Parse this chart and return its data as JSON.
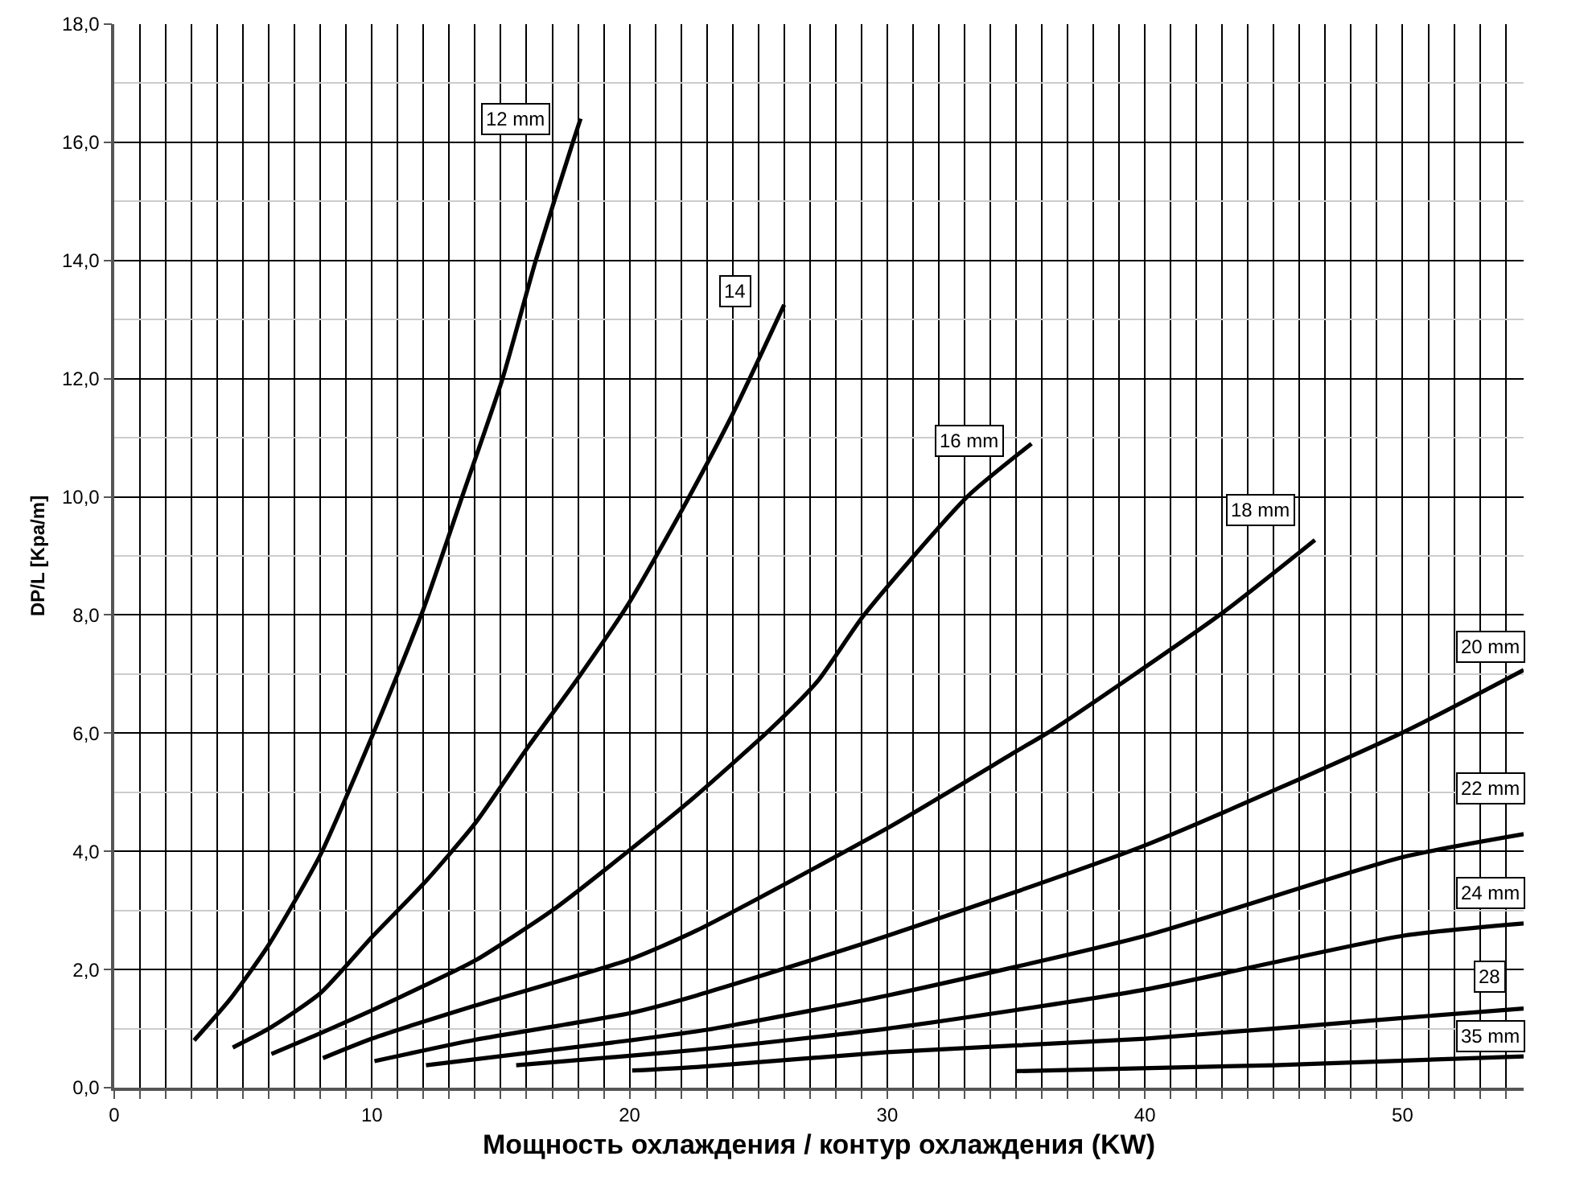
{
  "chart_data": {
    "type": "line",
    "xlabel": "Мощность охлаждения / контур охлаждения (KW)",
    "ylabel": "DP/L [Kpa/m]",
    "xlim": [
      0,
      54.7
    ],
    "ylim": [
      0,
      18
    ],
    "xticks": [
      0,
      {
        "value": 1,
        "label": null
      },
      {
        "value": 2,
        "label": null
      },
      {
        "value": 3,
        "label": null
      },
      {
        "value": 4,
        "label": null
      },
      {
        "value": 5,
        "label": null
      },
      {
        "value": 6,
        "label": null
      },
      {
        "value": 7,
        "label": null
      },
      {
        "value": 8,
        "label": null
      },
      {
        "value": 9,
        "label": null
      },
      10,
      {
        "value": 11,
        "label": null
      },
      {
        "value": 12,
        "label": null
      },
      {
        "value": 13,
        "label": null
      },
      {
        "value": 14,
        "label": null
      },
      {
        "value": 15,
        "label": null
      },
      {
        "value": 16,
        "label": null
      },
      {
        "value": 17,
        "label": null
      },
      {
        "value": 18,
        "label": null
      },
      {
        "value": 19,
        "label": null
      },
      20,
      {
        "value": 21,
        "label": null
      },
      {
        "value": 22,
        "label": null
      },
      {
        "value": 23,
        "label": null
      },
      {
        "value": 24,
        "label": null
      },
      {
        "value": 25,
        "label": null
      },
      {
        "value": 26,
        "label": null
      },
      {
        "value": 27,
        "label": null
      },
      {
        "value": 28,
        "label": null
      },
      {
        "value": 29,
        "label": null
      },
      30,
      {
        "value": 31,
        "label": null
      },
      {
        "value": 32,
        "label": null
      },
      {
        "value": 33,
        "label": null
      },
      {
        "value": 34,
        "label": null
      },
      {
        "value": 35,
        "label": null
      },
      {
        "value": 36,
        "label": null
      },
      {
        "value": 37,
        "label": null
      },
      {
        "value": 38,
        "label": null
      },
      {
        "value": 39,
        "label": null
      },
      40,
      {
        "value": 41,
        "label": null
      },
      {
        "value": 42,
        "label": null
      },
      {
        "value": 43,
        "label": null
      },
      {
        "value": 44,
        "label": null
      },
      {
        "value": 45,
        "label": null
      },
      {
        "value": 46,
        "label": null
      },
      {
        "value": 47,
        "label": null
      },
      {
        "value": 48,
        "label": null
      },
      {
        "value": 49,
        "label": null
      },
      50,
      {
        "value": 51,
        "label": null
      },
      {
        "value": 52,
        "label": null
      },
      {
        "value": 53,
        "label": null
      },
      {
        "value": 54,
        "label": null
      }
    ],
    "yticks": [
      {
        "value": 0,
        "label": "0,0"
      },
      {
        "value": 1,
        "label": null
      },
      {
        "value": 2,
        "label": "2,0"
      },
      {
        "value": 3,
        "label": null
      },
      {
        "value": 4,
        "label": "4,0"
      },
      {
        "value": 5,
        "label": null
      },
      {
        "value": 6,
        "label": "6,0"
      },
      {
        "value": 7,
        "label": null
      },
      {
        "value": 8,
        "label": "8,0"
      },
      {
        "value": 9,
        "label": null
      },
      {
        "value": 10,
        "label": "10,0"
      },
      {
        "value": 11,
        "label": null
      },
      {
        "value": 12,
        "label": "12,0"
      },
      {
        "value": 13,
        "label": null
      },
      {
        "value": 14,
        "label": "14,0"
      },
      {
        "value": 15,
        "label": null
      },
      {
        "value": 16,
        "label": "16,0"
      },
      {
        "value": 17,
        "label": null
      },
      {
        "value": 18,
        "label": "18,0"
      }
    ],
    "grid": true,
    "legend": false,
    "marker": "none",
    "line_style": "solid",
    "series": [
      {
        "color": "#000000",
        "x": [
          3.1,
          4.5,
          6,
          8,
          10,
          11,
          12,
          13.5,
          15.07,
          16.36,
          17.8,
          18.1
        ],
        "values": [
          0.8,
          1.5,
          2.42,
          3.94,
          5.94,
          7.0,
          8.1,
          10,
          12,
          14,
          16,
          16.4
        ]
      },
      {
        "color": "#000000",
        "x": [
          4.6,
          6,
          8,
          10,
          12,
          14,
          16,
          18,
          20,
          22.2,
          24,
          26
        ],
        "values": [
          0.68,
          1.0,
          1.6,
          2.55,
          3.45,
          4.47,
          5.73,
          6.93,
          8.22,
          9.91,
          11.4,
          13.25
        ]
      },
      {
        "color": "#000000",
        "x": [
          6.1,
          8,
          10,
          12,
          14,
          17,
          20,
          22.6,
          25.5,
          27.3,
          29.1,
          33.1,
          35.6
        ],
        "values": [
          0.57,
          0.92,
          1.31,
          1.72,
          2.15,
          3.0,
          4.02,
          4.95,
          6.08,
          6.88,
          8,
          10,
          10.9
        ]
      },
      {
        "color": "#000000",
        "x": [
          8.1,
          10,
          14,
          20,
          22.6,
          30,
          35,
          36.5,
          42.9,
          46.6
        ],
        "values": [
          0.5,
          0.83,
          1.39,
          2.17,
          2.66,
          4.39,
          5.69,
          6.08,
          8.0,
          9.27
        ]
      },
      {
        "color": "#000000",
        "x": [
          10.1,
          14,
          20,
          22.6,
          30,
          40,
          50,
          54.7
        ],
        "values": [
          0.45,
          0.81,
          1.26,
          1.56,
          2.57,
          4.1,
          6.01,
          7.07
        ]
      },
      {
        "color": "#000000",
        "x": [
          12.1,
          20,
          23,
          30,
          40,
          50,
          54.7
        ],
        "values": [
          0.38,
          0.8,
          0.98,
          1.56,
          2.57,
          3.9,
          4.29
        ]
      },
      {
        "color": "#000000",
        "x": [
          15.6,
          20,
          22.6,
          30,
          40,
          50,
          54.7
        ],
        "values": [
          0.38,
          0.54,
          0.64,
          1.0,
          1.66,
          2.57,
          2.78
        ]
      },
      {
        "color": "#000000",
        "x": [
          20.1,
          22.6,
          30,
          40,
          50,
          54.7
        ],
        "values": [
          0.29,
          0.35,
          0.6,
          0.83,
          1.18,
          1.34
        ]
      },
      {
        "color": "#000000",
        "x": [
          35,
          45,
          54.7
        ],
        "values": [
          0.28,
          0.38,
          0.53
        ]
      }
    ],
    "annotations": [
      {
        "text": "12 mm",
        "x": 15.6,
        "y": 16.4
      },
      {
        "text": "14",
        "x": 24.1,
        "y": 13.47
      },
      {
        "text": "16 mm",
        "x": 33.2,
        "y": 10.95
      },
      {
        "text": "18 mm",
        "x": 44.5,
        "y": 9.77
      },
      {
        "text": "20 mm",
        "x": 53.4,
        "y": 7.47
      },
      {
        "text": "22 mm",
        "x": 53.4,
        "y": 5.06
      },
      {
        "text": "24 mm",
        "x": 53.4,
        "y": 3.3
      },
      {
        "text": "28",
        "x": 53.4,
        "y": 1.87
      },
      {
        "text": "35 mm",
        "x": 53.4,
        "y": 0.86
      }
    ]
  }
}
